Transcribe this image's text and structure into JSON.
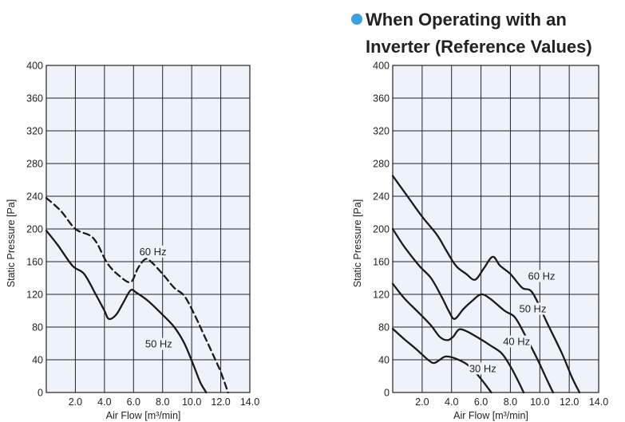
{
  "heading": {
    "line1": "When Operating with an",
    "line2": "Inverter (Reference Values)",
    "bullet_color": "#3aa0e0"
  },
  "chart_data": [
    {
      "type": "line",
      "xlabel": "Air Flow [m³/min]",
      "ylabel": "Static Pressure [Pa]",
      "xlim": [
        0,
        14
      ],
      "ylim": [
        0,
        400
      ],
      "x_ticks": [
        "2.0",
        "4.0",
        "6.0",
        "8.0",
        "10.0",
        "12.0",
        "14.0"
      ],
      "y_ticks": [
        "0",
        "40",
        "80",
        "120",
        "160",
        "200",
        "240",
        "280",
        "320",
        "360",
        "400"
      ],
      "grid": true,
      "plot_background": "#eef3fb",
      "series": [
        {
          "name": "60 Hz",
          "style": "dashed",
          "label_at": [
            6.4,
            168
          ],
          "points": [
            [
              0,
              238
            ],
            [
              1,
              222
            ],
            [
              2,
              200
            ],
            [
              3,
              192
            ],
            [
              3.5,
              182
            ],
            [
              4.2,
              158
            ],
            [
              5,
              143
            ],
            [
              5.8,
              135
            ],
            [
              6.3,
              152
            ],
            [
              6.8,
              163
            ],
            [
              7.2,
              160
            ],
            [
              8,
              145
            ],
            [
              8.8,
              128
            ],
            [
              9.5,
              118
            ],
            [
              10.2,
              95
            ],
            [
              10.8,
              72
            ],
            [
              11.5,
              45
            ],
            [
              12,
              25
            ],
            [
              12.5,
              0
            ]
          ]
        },
        {
          "name": "50 Hz",
          "style": "solid",
          "label_at": [
            6.8,
            55
          ],
          "points": [
            [
              0,
              198
            ],
            [
              0.8,
              180
            ],
            [
              1.8,
              155
            ],
            [
              2.6,
              145
            ],
            [
              3.4,
              120
            ],
            [
              4,
              100
            ],
            [
              4.3,
              90
            ],
            [
              4.8,
              95
            ],
            [
              5.3,
              110
            ],
            [
              5.8,
              125
            ],
            [
              6.2,
              122
            ],
            [
              7,
              112
            ],
            [
              8,
              95
            ],
            [
              8.8,
              80
            ],
            [
              9.5,
              60
            ],
            [
              10.2,
              30
            ],
            [
              10.6,
              12
            ],
            [
              11,
              0
            ]
          ]
        }
      ]
    },
    {
      "type": "line",
      "xlabel": "Air Flow [m³/min]",
      "ylabel": "Static Pressure [Pa]",
      "xlim": [
        0,
        14
      ],
      "ylim": [
        0,
        400
      ],
      "x_ticks": [
        "2.0",
        "4.0",
        "6.0",
        "8.0",
        "10.0",
        "12.0",
        "14.0"
      ],
      "y_ticks": [
        "0",
        "40",
        "80",
        "120",
        "160",
        "200",
        "240",
        "280",
        "320",
        "360",
        "400"
      ],
      "grid": true,
      "plot_background": "#eef3fb",
      "series": [
        {
          "name": "60 Hz",
          "style": "solid",
          "label_at": [
            9.2,
            138
          ],
          "points": [
            [
              0,
              265
            ],
            [
              1,
              240
            ],
            [
              2,
              215
            ],
            [
              3,
              193
            ],
            [
              3.6,
              175
            ],
            [
              4.3,
              155
            ],
            [
              5,
              145
            ],
            [
              5.6,
              138
            ],
            [
              6.2,
              152
            ],
            [
              6.8,
              166
            ],
            [
              7.3,
              155
            ],
            [
              8,
              145
            ],
            [
              8.8,
              128
            ],
            [
              9.5,
              122
            ],
            [
              10.5,
              85
            ],
            [
              11.5,
              48
            ],
            [
              12.2,
              18
            ],
            [
              12.7,
              0
            ]
          ]
        },
        {
          "name": "50 Hz",
          "style": "solid",
          "label_at": [
            8.6,
            98
          ],
          "points": [
            [
              0,
              200
            ],
            [
              0.8,
              178
            ],
            [
              1.8,
              155
            ],
            [
              2.6,
              140
            ],
            [
              3.3,
              118
            ],
            [
              3.8,
              100
            ],
            [
              4.2,
              90
            ],
            [
              4.8,
              102
            ],
            [
              5.4,
              112
            ],
            [
              6,
              120
            ],
            [
              6.6,
              115
            ],
            [
              7.6,
              100
            ],
            [
              8.3,
              92
            ],
            [
              9,
              70
            ],
            [
              9.8,
              42
            ],
            [
              10.5,
              15
            ],
            [
              10.9,
              0
            ]
          ]
        },
        {
          "name": "40 Hz",
          "style": "solid",
          "label_at": [
            7.5,
            58
          ],
          "points": [
            [
              0,
              133
            ],
            [
              0.8,
              115
            ],
            [
              1.8,
              97
            ],
            [
              2.6,
              82
            ],
            [
              3.2,
              68
            ],
            [
              3.7,
              64
            ],
            [
              4.1,
              68
            ],
            [
              4.5,
              77
            ],
            [
              5,
              75
            ],
            [
              5.8,
              67
            ],
            [
              6.6,
              58
            ],
            [
              7.4,
              48
            ],
            [
              8,
              32
            ],
            [
              8.5,
              15
            ],
            [
              8.9,
              0
            ]
          ]
        },
        {
          "name": "30 Hz",
          "style": "solid",
          "label_at": [
            5.2,
            25
          ],
          "points": [
            [
              0,
              78
            ],
            [
              0.8,
              65
            ],
            [
              1.6,
              53
            ],
            [
              2.4,
              40
            ],
            [
              2.8,
              36
            ],
            [
              3.2,
              40
            ],
            [
              3.6,
              44
            ],
            [
              4.2,
              42
            ],
            [
              5,
              35
            ],
            [
              5.6,
              25
            ],
            [
              6.2,
              12
            ],
            [
              6.7,
              0
            ]
          ]
        }
      ]
    }
  ]
}
